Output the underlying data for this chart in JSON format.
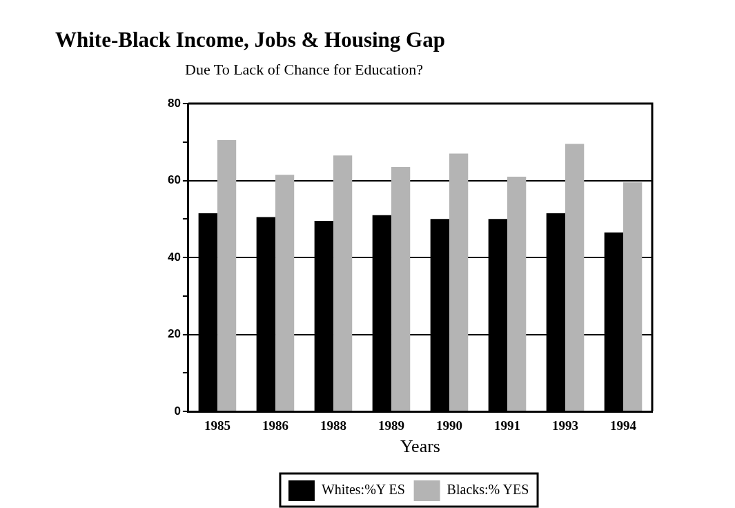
{
  "chart_data": {
    "type": "bar",
    "title": "White-Black Income, Jobs & Housing Gap",
    "subtitle": "Due To Lack of Chance for Education?",
    "xlabel": "Years",
    "categories": [
      "1985",
      "1986",
      "1988",
      "1989",
      "1990",
      "1991",
      "1993",
      "1994"
    ],
    "series": [
      {
        "name": "Whites:%Y ES",
        "color": "#000000",
        "values": [
          51.5,
          50.5,
          49.5,
          51,
          50,
          50,
          51.5,
          46.5
        ]
      },
      {
        "name": "Blacks:% YES",
        "color": "#b4b4b4",
        "values": [
          70.5,
          61.5,
          66.5,
          63.5,
          67,
          61,
          69.5,
          59.5
        ]
      }
    ],
    "ylim": [
      0,
      80
    ],
    "yticks": [
      0,
      {
        "value": 10,
        "label": null
      },
      20,
      {
        "value": 30,
        "label": null
      },
      40,
      {
        "value": 50,
        "label": null
      },
      60,
      {
        "value": 70,
        "label": null
      },
      80
    ],
    "grid": "y",
    "legend": "bottom"
  }
}
